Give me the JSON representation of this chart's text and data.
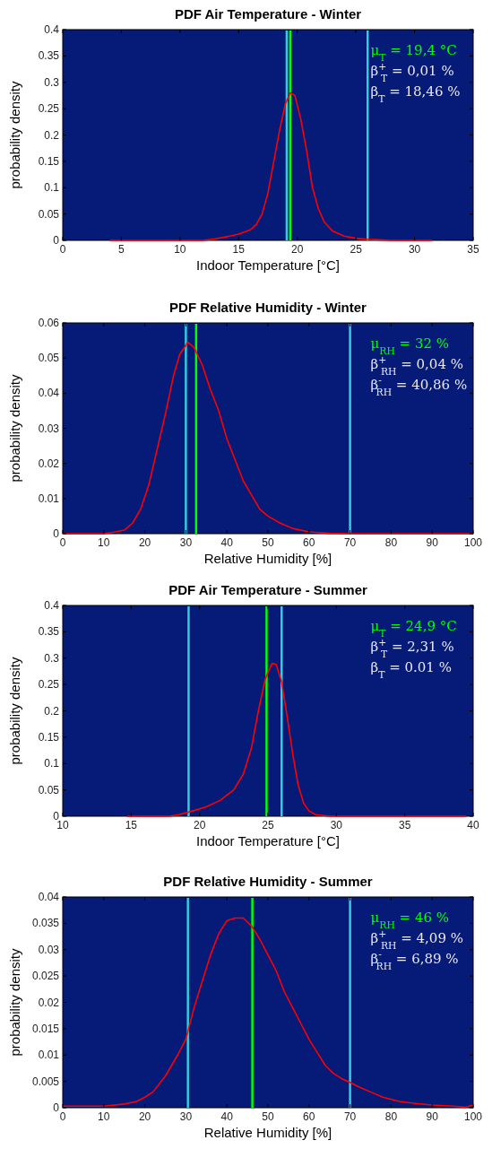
{
  "chart_data": [
    {
      "type": "line",
      "title": "PDF Air Temperature - Winter",
      "xlabel": "Indoor Temperature [°C]",
      "ylabel": "probability density",
      "xlim": [
        0,
        35
      ],
      "xticks": [
        0,
        5,
        10,
        15,
        20,
        25,
        30,
        35
      ],
      "ylim": [
        0,
        0.4
      ],
      "yticks": [
        0,
        0.05,
        0.1,
        0.15,
        0.2,
        0.25,
        0.3,
        0.35,
        0.4
      ],
      "series": [
        {
          "color": "#ff0000",
          "x": [
            4,
            12,
            13,
            14,
            15,
            16,
            16.5,
            17,
            17.5,
            18,
            18.5,
            19,
            19.4,
            19.8,
            20.3,
            20.8,
            21.3,
            21.8,
            22.3,
            23,
            24,
            25,
            26,
            27,
            28,
            31.5
          ],
          "values": [
            0,
            0,
            0.003,
            0.007,
            0.012,
            0.02,
            0.03,
            0.05,
            0.09,
            0.15,
            0.21,
            0.26,
            0.28,
            0.275,
            0.23,
            0.17,
            0.1,
            0.06,
            0.035,
            0.018,
            0.008,
            0.004,
            0.002,
            0.001,
            0,
            0
          ]
        }
      ],
      "ref_lines": [
        {
          "axis": "x",
          "value": 19.1,
          "color": "#33ccdd"
        },
        {
          "axis": "x",
          "value": 19.4,
          "color": "#00ff00"
        },
        {
          "axis": "x",
          "value": 26,
          "color": "#33ccdd"
        }
      ],
      "annotations": [
        "μ$_{T}$ = 19,4 °C",
        "β$^{+}$$_{T}$ = 0,01 %",
        "β$_{T}$ = 18,46 %"
      ]
    },
    {
      "type": "line",
      "title": "PDF Relative Humidity - Winter",
      "xlabel": "Relative Humidity [%]",
      "ylabel": "probability density",
      "xlim": [
        0,
        100
      ],
      "xticks": [
        0,
        10,
        20,
        30,
        40,
        50,
        60,
        70,
        80,
        90,
        100
      ],
      "ylim": [
        0,
        0.06
      ],
      "yticks": [
        0,
        0.01,
        0.02,
        0.03,
        0.04,
        0.05,
        0.06
      ],
      "series": [
        {
          "color": "#ff0000",
          "x": [
            0,
            10,
            12,
            15,
            17,
            19,
            21,
            23,
            25,
            27,
            28.5,
            30.5,
            32,
            34,
            36,
            38,
            40,
            42,
            44,
            46,
            48,
            50,
            53,
            56,
            60,
            65,
            70,
            100
          ],
          "values": [
            0,
            0,
            0.0003,
            0.001,
            0.003,
            0.007,
            0.014,
            0.024,
            0.034,
            0.045,
            0.051,
            0.0545,
            0.053,
            0.048,
            0.041,
            0.035,
            0.027,
            0.021,
            0.015,
            0.011,
            0.007,
            0.005,
            0.003,
            0.0015,
            0.0005,
            0.0001,
            0,
            0
          ]
        }
      ],
      "ref_lines": [
        {
          "axis": "x",
          "value": 30,
          "color": "#33ccdd"
        },
        {
          "axis": "x",
          "value": 32.5,
          "color": "#00ff00"
        },
        {
          "axis": "x",
          "value": 70,
          "color": "#33ccdd"
        }
      ],
      "annotations": [
        "μ$_{RH}$ = 32 %",
        "β$^{+}$$_{RH}$ = 0,04 %",
        "β$^{-}$$_{RH}$ = 40,86 %"
      ]
    },
    {
      "type": "line",
      "title": "PDF Air Temperature - Summer",
      "xlabel": "Indoor Temperature [°C]",
      "ylabel": "probability density",
      "xlim": [
        10,
        40
      ],
      "xticks": [
        10,
        15,
        20,
        25,
        30,
        35,
        40
      ],
      "ylim": [
        0,
        0.4
      ],
      "yticks": [
        0,
        0.05,
        0.1,
        0.15,
        0.2,
        0.25,
        0.3,
        0.35,
        0.4
      ],
      "series": [
        {
          "color": "#ff0000",
          "x": [
            14.7,
            17.8,
            18.5,
            19.5,
            20.5,
            21.5,
            22.5,
            23.2,
            23.8,
            24.3,
            24.8,
            25.3,
            25.6,
            26,
            26.4,
            26.8,
            27.2,
            27.6,
            28,
            28.5,
            29.5,
            39.5
          ],
          "values": [
            0,
            0,
            0.003,
            0.01,
            0.018,
            0.03,
            0.05,
            0.08,
            0.13,
            0.2,
            0.26,
            0.29,
            0.288,
            0.255,
            0.19,
            0.12,
            0.06,
            0.025,
            0.01,
            0.003,
            0,
            0
          ]
        }
      ],
      "ref_lines": [
        {
          "axis": "x",
          "value": 19.2,
          "color": "#33ccdd"
        },
        {
          "axis": "x",
          "value": 24.9,
          "color": "#00ff00"
        },
        {
          "axis": "x",
          "value": 26,
          "color": "#33ccdd"
        }
      ],
      "annotations": [
        "μ$_{T}$ = 24,9 °C",
        "β$^{+}$$_{T}$ = 2,31 %",
        "β$_{T}$ = 0.01 %"
      ]
    },
    {
      "type": "line",
      "title": "PDF Relative Humidity - Summer",
      "xlabel": "Relative Humidity [%]",
      "ylabel": "probability density",
      "xlim": [
        0,
        100
      ],
      "xticks": [
        0,
        10,
        20,
        30,
        40,
        50,
        60,
        70,
        80,
        90,
        100
      ],
      "ylim": [
        0,
        0.04
      ],
      "yticks": [
        0,
        0.005,
        0.01,
        0.015,
        0.02,
        0.025,
        0.03,
        0.035,
        0.04
      ],
      "series": [
        {
          "color": "#ff0000",
          "x": [
            0,
            10,
            15,
            18,
            20,
            22,
            25,
            28,
            30,
            32,
            34,
            36,
            38,
            40,
            42,
            44,
            46,
            48,
            50,
            52,
            54,
            56,
            58,
            60,
            62,
            64,
            66,
            68,
            70,
            72,
            75,
            78,
            82,
            86,
            90,
            95,
            98,
            100
          ],
          "values": [
            0.0003,
            0.0003,
            0.0007,
            0.0012,
            0.002,
            0.003,
            0.006,
            0.01,
            0.013,
            0.019,
            0.024,
            0.029,
            0.033,
            0.0355,
            0.036,
            0.036,
            0.0345,
            0.032,
            0.029,
            0.026,
            0.022,
            0.019,
            0.016,
            0.013,
            0.0105,
            0.008,
            0.0065,
            0.0055,
            0.0048,
            0.004,
            0.003,
            0.002,
            0.0012,
            0.0008,
            0.0005,
            0.0003,
            0.0001,
            0.0005
          ]
        }
      ],
      "ref_lines": [
        {
          "axis": "x",
          "value": 30.5,
          "color": "#33ccdd"
        },
        {
          "axis": "x",
          "value": 46.2,
          "color": "#00ff00"
        },
        {
          "axis": "x",
          "value": 70,
          "color": "#33ccdd"
        }
      ],
      "annotations": [
        "μ$_{RH}$ = 46 %",
        "β$^{+}$$_{RH}$ = 4,09 %",
        "β$^{-}$$_{RH}$ = 6,89 %"
      ]
    }
  ]
}
